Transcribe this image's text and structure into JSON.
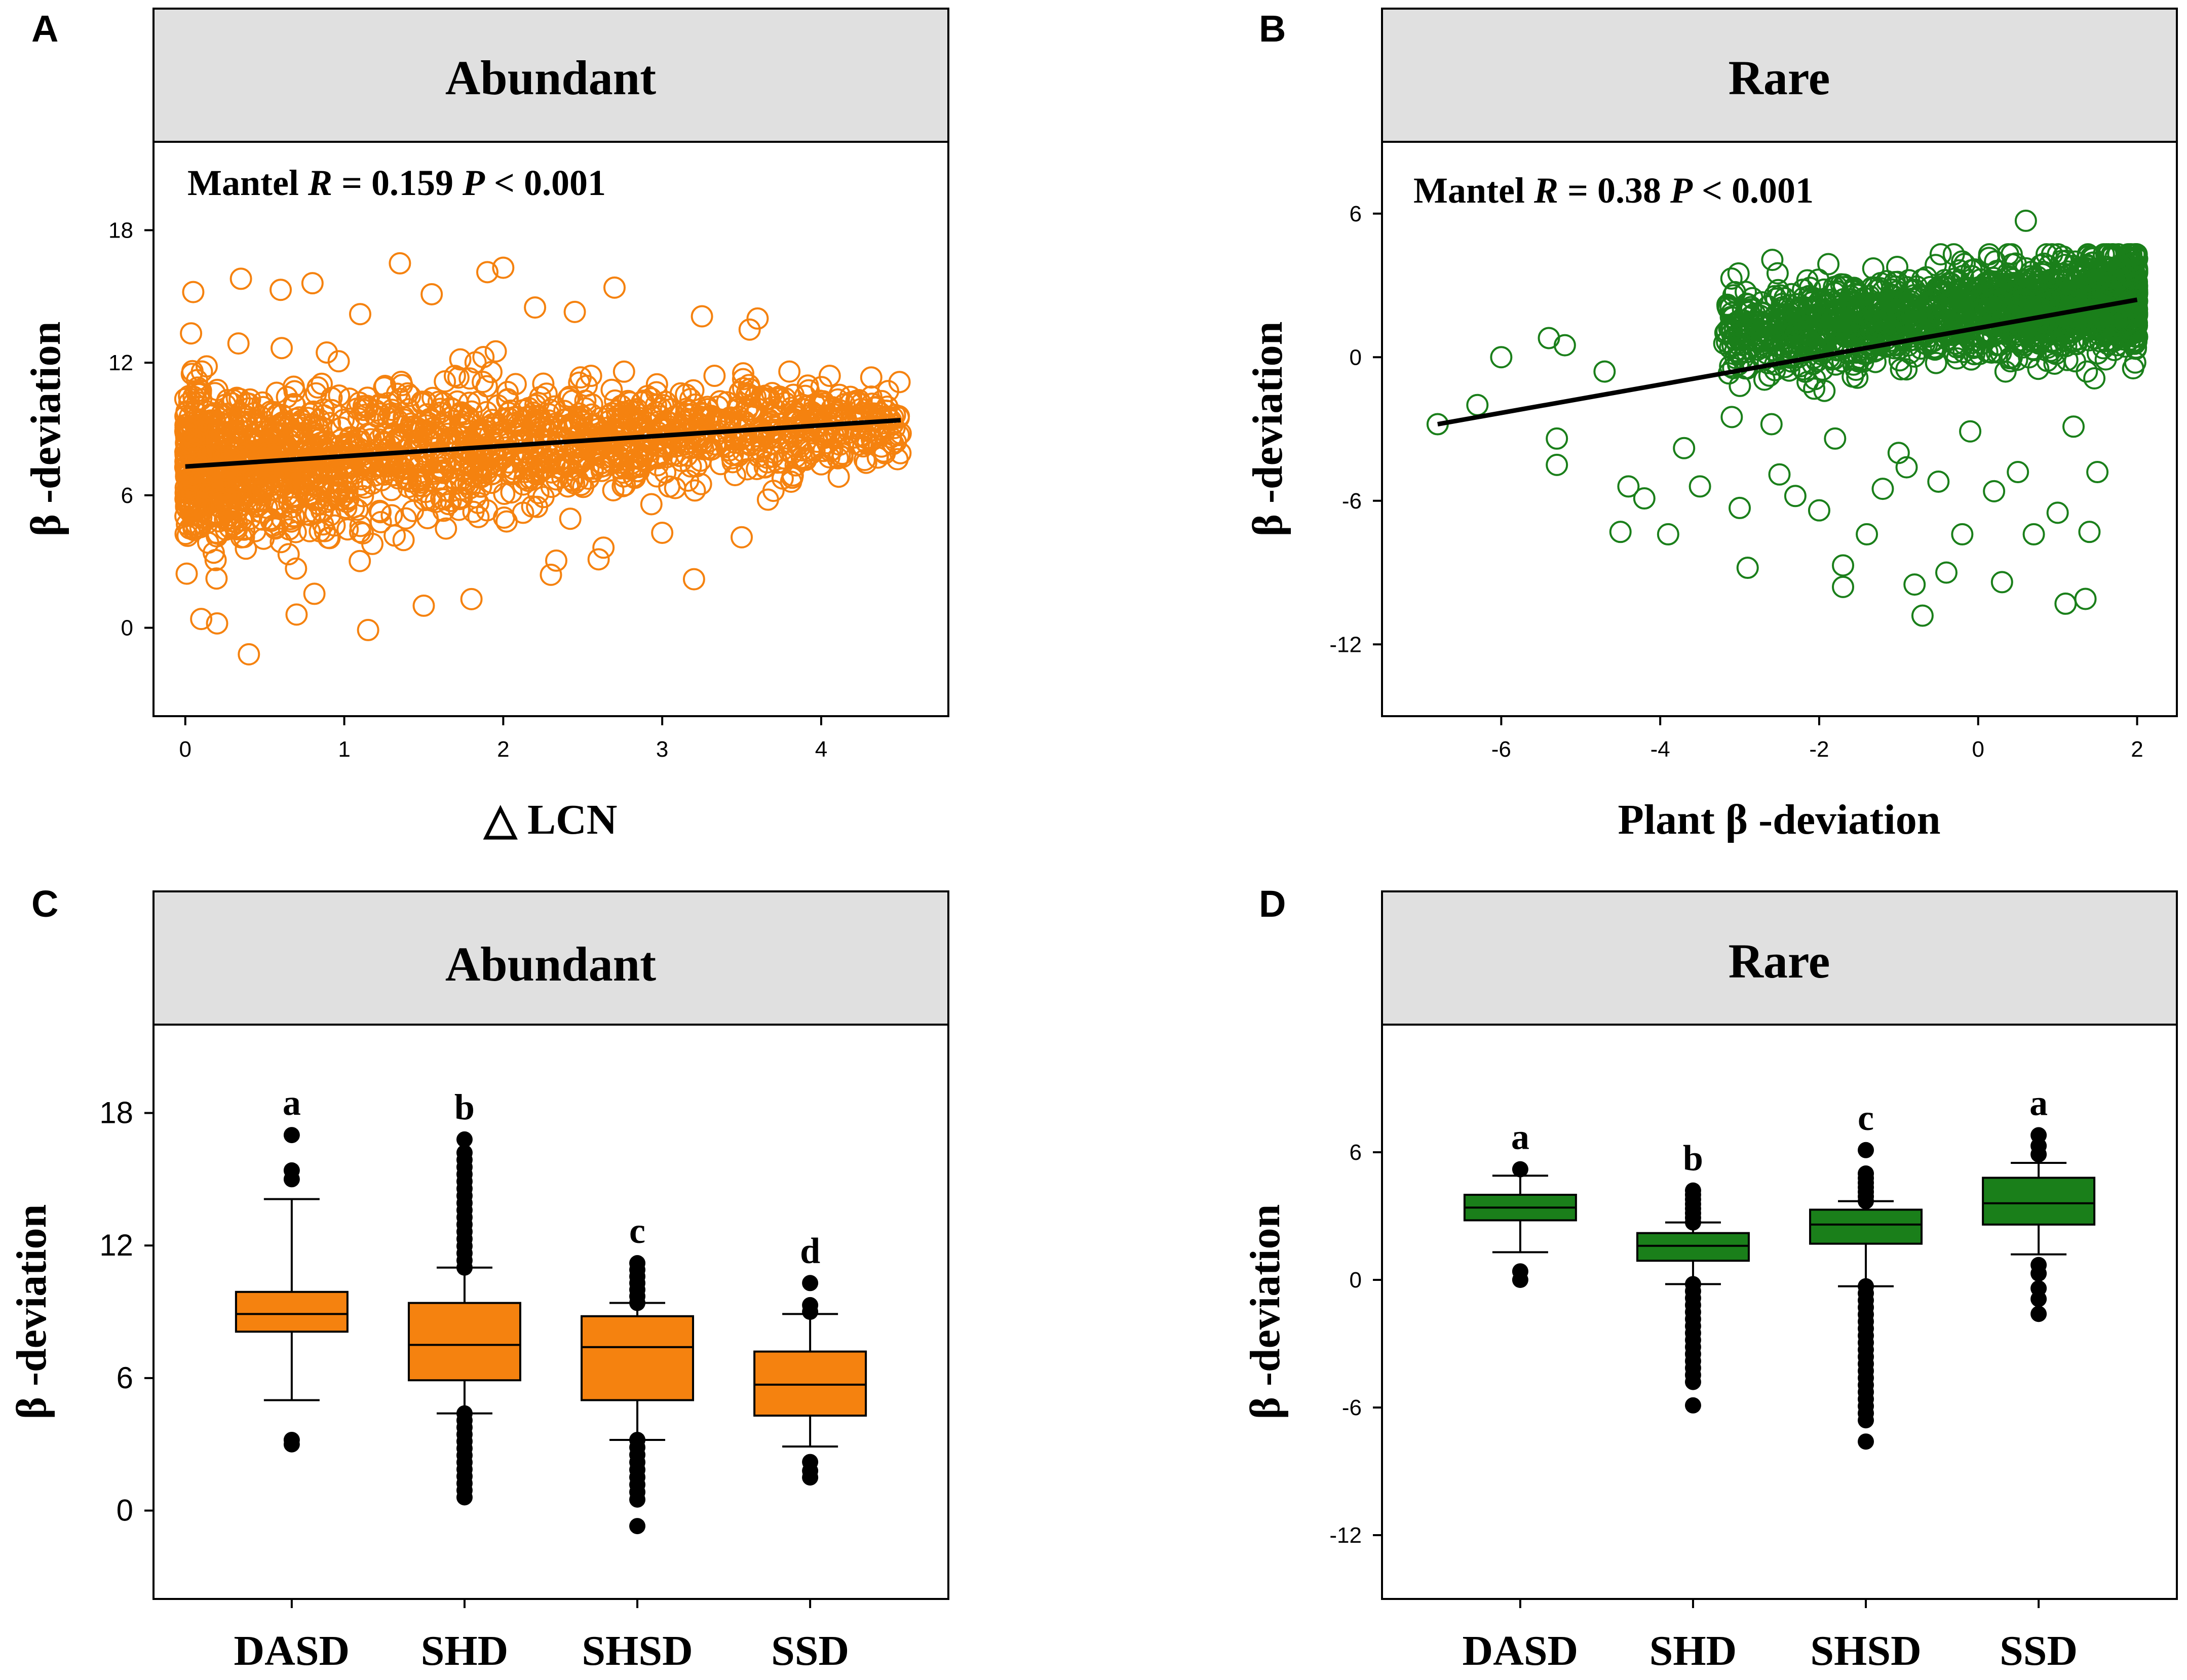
{
  "colors": {
    "abundant": "#f5820f",
    "rare": "#1a7f1a",
    "strip_bg": "#e0e0e0",
    "line": "#000000"
  },
  "chart_data": [
    {
      "panel": "A",
      "type": "scatter",
      "title": "Abundant",
      "xlabel": "△ LCN",
      "ylabel": "β -deviation",
      "xlim": [
        -0.2,
        4.8
      ],
      "ylim": [
        -4,
        22
      ],
      "xticks": [
        0,
        1,
        2,
        3,
        4
      ],
      "yticks": [
        0,
        6,
        12,
        18
      ],
      "annotation": {
        "prefix": "Mantel ",
        "r_symbol": "R",
        "r_value": " = 0.159  ",
        "p_symbol": "P",
        "p_value": " < 0.001"
      },
      "fit_line": {
        "x": [
          0,
          4.5
        ],
        "y": [
          7.3,
          9.4
        ]
      },
      "cloud": {
        "x_range": [
          0,
          4.5
        ],
        "center_y0": 7.3,
        "center_y1": 9.4,
        "spread_y0": 3.2,
        "spread_y1": 1.5
      },
      "points": [
        {
          "x": 0.1,
          "y": 0.4
        },
        {
          "x": 0.2,
          "y": 0.2
        },
        {
          "x": 0.4,
          "y": -1.2
        },
        {
          "x": 1.15,
          "y": -0.1
        },
        {
          "x": 0.7,
          "y": 0.6
        },
        {
          "x": 0.05,
          "y": 15.2
        },
        {
          "x": 0.35,
          "y": 15.8
        },
        {
          "x": 0.6,
          "y": 15.3
        },
        {
          "x": 0.8,
          "y": 15.6
        },
        {
          "x": 1.1,
          "y": 14.2
        },
        {
          "x": 1.35,
          "y": 16.5
        },
        {
          "x": 1.55,
          "y": 15.1
        },
        {
          "x": 1.9,
          "y": 16.1
        },
        {
          "x": 2.0,
          "y": 16.3
        },
        {
          "x": 2.2,
          "y": 14.5
        },
        {
          "x": 2.45,
          "y": 14.3
        },
        {
          "x": 2.7,
          "y": 15.4
        },
        {
          "x": 3.25,
          "y": 14.1
        },
        {
          "x": 3.55,
          "y": 13.5
        },
        {
          "x": 3.8,
          "y": 11.6
        },
        {
          "x": 3.6,
          "y": 14.0
        },
        {
          "x": 1.5,
          "y": 1.0
        },
        {
          "x": 1.8,
          "y": 1.3
        },
        {
          "x": 2.3,
          "y": 2.4
        },
        {
          "x": 2.6,
          "y": 3.1
        },
        {
          "x": 3.2,
          "y": 2.2
        },
        {
          "x": 3.0,
          "y": 4.3
        },
        {
          "x": 3.5,
          "y": 4.1
        },
        {
          "x": 3.7,
          "y": 6.2
        },
        {
          "x": 4.0,
          "y": 7.4
        },
        {
          "x": 4.3,
          "y": 8.9
        },
        {
          "x": 4.45,
          "y": 9.2
        },
        {
          "x": 4.5,
          "y": 8.8
        },
        {
          "x": 4.4,
          "y": 7.9
        },
        {
          "x": 3.9,
          "y": 10.5
        }
      ]
    },
    {
      "panel": "B",
      "type": "scatter",
      "title": "Rare",
      "xlabel": "Plant β  -deviation",
      "ylabel": "β -deviation",
      "xlim": [
        -7.5,
        2.5
      ],
      "ylim": [
        -15,
        9
      ],
      "xticks": [
        -6,
        -4,
        -2,
        0,
        2
      ],
      "yticks": [
        -12,
        -6,
        0,
        6
      ],
      "annotation": {
        "prefix": "Mantel ",
        "r_symbol": "R",
        "r_value": " = 0.38  ",
        "p_symbol": "P",
        "p_value": " < 0.001"
      },
      "fit_line": {
        "x": [
          -6.8,
          2.0
        ],
        "y": [
          -2.8,
          2.4
        ]
      },
      "cloud": {
        "x_range": [
          -3.2,
          2.0
        ],
        "center_y0": 1.0,
        "center_y1": 2.4,
        "spread_y0": 1.6,
        "spread_y1": 1.8
      },
      "points": [
        {
          "x": -6.8,
          "y": -2.8
        },
        {
          "x": -6.3,
          "y": -2.0
        },
        {
          "x": -6.0,
          "y": 0.0
        },
        {
          "x": -5.4,
          "y": 0.8
        },
        {
          "x": -5.2,
          "y": 0.5
        },
        {
          "x": -5.3,
          "y": -3.4
        },
        {
          "x": -5.3,
          "y": -4.5
        },
        {
          "x": -4.7,
          "y": -0.6
        },
        {
          "x": -4.4,
          "y": -5.4
        },
        {
          "x": -4.2,
          "y": -5.9
        },
        {
          "x": -4.5,
          "y": -7.3
        },
        {
          "x": -3.9,
          "y": -7.4
        },
        {
          "x": -3.7,
          "y": -3.8
        },
        {
          "x": -3.5,
          "y": -5.4
        },
        {
          "x": -3.1,
          "y": -2.5
        },
        {
          "x": -3.0,
          "y": -6.3
        },
        {
          "x": -2.9,
          "y": -8.8
        },
        {
          "x": -2.5,
          "y": -4.9
        },
        {
          "x": -2.3,
          "y": -5.8
        },
        {
          "x": -2.0,
          "y": -6.4
        },
        {
          "x": -1.7,
          "y": -8.7
        },
        {
          "x": -1.7,
          "y": -9.6
        },
        {
          "x": -1.4,
          "y": -7.4
        },
        {
          "x": -1.2,
          "y": -5.5
        },
        {
          "x": -1.0,
          "y": -4.0
        },
        {
          "x": -0.8,
          "y": -9.5
        },
        {
          "x": -0.7,
          "y": -10.8
        },
        {
          "x": -0.4,
          "y": -9.0
        },
        {
          "x": -0.2,
          "y": -7.4
        },
        {
          "x": 0.3,
          "y": -9.4
        },
        {
          "x": 0.5,
          "y": -4.8
        },
        {
          "x": 0.7,
          "y": -7.4
        },
        {
          "x": 1.0,
          "y": -6.5
        },
        {
          "x": 1.1,
          "y": -10.3
        },
        {
          "x": 1.35,
          "y": -10.1
        },
        {
          "x": 1.4,
          "y": -7.3
        },
        {
          "x": 1.5,
          "y": -4.8
        },
        {
          "x": -0.5,
          "y": -5.2
        },
        {
          "x": -0.9,
          "y": -4.6
        },
        {
          "x": 0.2,
          "y": -5.6
        },
        {
          "x": 0.6,
          "y": 5.7
        },
        {
          "x": -0.1,
          "y": -3.1
        },
        {
          "x": -1.8,
          "y": -3.4
        },
        {
          "x": -2.6,
          "y": -2.8
        },
        {
          "x": 1.2,
          "y": -2.9
        }
      ]
    },
    {
      "panel": "C",
      "type": "box",
      "title": "Abundant",
      "ylabel": "β -deviation",
      "ylim": [
        -4,
        22
      ],
      "yticks": [
        0,
        6,
        12,
        18
      ],
      "categories": [
        "DASD",
        "SHD",
        "SHSD",
        "SSD"
      ],
      "sig_letters": [
        "a",
        "b",
        "c",
        "d"
      ],
      "boxes": [
        {
          "q1": 8.1,
          "median": 8.9,
          "q3": 9.9,
          "whisker_low": 5.0,
          "whisker_high": 14.1,
          "outliers_low": [
            3.2,
            3.0
          ],
          "outliers_high": [
            15.0,
            15.4,
            17.0
          ],
          "outlier_range_low": null,
          "outlier_range_high": null
        },
        {
          "q1": 5.9,
          "median": 7.5,
          "q3": 9.4,
          "whisker_low": 4.4,
          "whisker_high": 11.0,
          "outliers_low": [],
          "outliers_high": [
            16.8
          ],
          "outlier_range_low": [
            0.6,
            4.4
          ],
          "outlier_range_high": [
            11.0,
            16.2
          ]
        },
        {
          "q1": 5.0,
          "median": 7.4,
          "q3": 8.8,
          "whisker_low": 3.2,
          "whisker_high": 9.4,
          "outliers_low": [
            -0.7
          ],
          "outliers_high": [],
          "outlier_range_low": [
            0.5,
            3.2
          ],
          "outlier_range_high": [
            9.4,
            11.2
          ]
        },
        {
          "q1": 4.3,
          "median": 5.7,
          "q3": 7.2,
          "whisker_low": 2.9,
          "whisker_high": 8.9,
          "outliers_low": [
            1.5,
            1.8,
            2.2
          ],
          "outliers_high": [
            9.0,
            9.3,
            10.3
          ],
          "outlier_range_low": null,
          "outlier_range_high": null
        }
      ]
    },
    {
      "panel": "D",
      "type": "box",
      "title": "Rare",
      "ylabel": "β -deviation",
      "ylim": [
        -15,
        12
      ],
      "yticks": [
        -12,
        -6,
        0,
        6
      ],
      "categories": [
        "DASD",
        "SHD",
        "SHSD",
        "SSD"
      ],
      "sig_letters": [
        "a",
        "b",
        "c",
        "a"
      ],
      "boxes": [
        {
          "q1": 2.8,
          "median": 3.4,
          "q3": 4.0,
          "whisker_low": 1.3,
          "whisker_high": 4.9,
          "outliers_low": [
            0.0,
            0.4
          ],
          "outliers_high": [
            5.2
          ],
          "outlier_range_low": null,
          "outlier_range_high": null
        },
        {
          "q1": 0.9,
          "median": 1.6,
          "q3": 2.2,
          "whisker_low": -0.2,
          "whisker_high": 2.7,
          "outliers_low": [
            -5.9
          ],
          "outliers_high": [
            4.2
          ],
          "outlier_range_low": [
            -4.8,
            -0.2
          ],
          "outlier_range_high": [
            2.7,
            4.0
          ]
        },
        {
          "q1": 1.7,
          "median": 2.6,
          "q3": 3.3,
          "whisker_low": -0.3,
          "whisker_high": 3.7,
          "outliers_low": [
            -7.6
          ],
          "outliers_high": [
            6.1
          ],
          "outlier_range_low": [
            -6.6,
            -0.3
          ],
          "outlier_range_high": [
            3.7,
            5.0
          ]
        },
        {
          "q1": 2.6,
          "median": 3.6,
          "q3": 4.8,
          "whisker_low": 1.2,
          "whisker_high": 5.5,
          "outliers_low": [
            -1.6,
            -0.9,
            -0.4,
            0.3,
            0.7
          ],
          "outliers_high": [
            5.9,
            6.3,
            6.8
          ],
          "outlier_range_low": null,
          "outlier_range_high": null
        }
      ]
    }
  ]
}
